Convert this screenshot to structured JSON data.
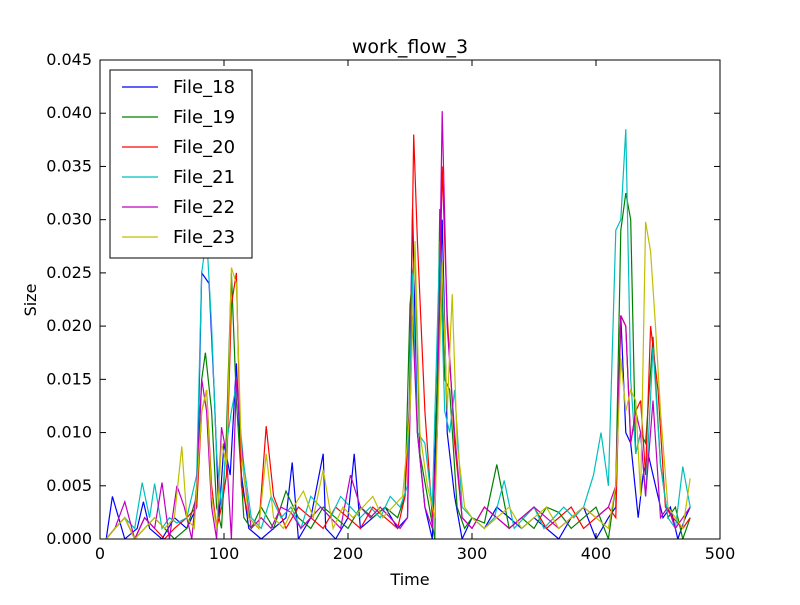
{
  "chart_data": {
    "type": "line",
    "title": "work_flow_3",
    "xlabel": "Time",
    "ylabel": "Size",
    "xlim": [
      0,
      500
    ],
    "ylim": [
      0,
      0.045
    ],
    "xticks": [
      0,
      100,
      200,
      300,
      400,
      500
    ],
    "yticks": [
      0.0,
      0.005,
      0.01,
      0.015,
      0.02,
      0.025,
      0.03,
      0.035,
      0.04,
      0.045
    ],
    "xtick_labels": [
      "0",
      "100",
      "200",
      "300",
      "400",
      "500"
    ],
    "ytick_labels": [
      "0.000",
      "0.005",
      "0.010",
      "0.015",
      "0.020",
      "0.025",
      "0.030",
      "0.035",
      "0.040",
      "0.045"
    ],
    "grid": false,
    "legend_position": "top-left",
    "series": [
      {
        "name": "File_18",
        "color": "#0000ff",
        "x": [
          5,
          10,
          15,
          20,
          30,
          35,
          40,
          50,
          60,
          70,
          78,
          82,
          88,
          92,
          96,
          100,
          105,
          110,
          114,
          120,
          130,
          140,
          150,
          155,
          160,
          170,
          180,
          182,
          190,
          200,
          205,
          210,
          220,
          230,
          240,
          248,
          252,
          256,
          262,
          268,
          272,
          276,
          280,
          286,
          292,
          300,
          310,
          320,
          330,
          340,
          350,
          360,
          370,
          380,
          390,
          400,
          410,
          416,
          420,
          424,
          428,
          434,
          438,
          442,
          448,
          454,
          460,
          466,
          472,
          476
        ],
        "values": [
          0.0,
          0.004,
          0.002,
          0.0,
          0.001,
          0.0035,
          0.001,
          0.0,
          0.002,
          0.001,
          0.003,
          0.025,
          0.024,
          0.014,
          0.002,
          0.009,
          0.006,
          0.0165,
          0.006,
          0.001,
          0.0,
          0.001,
          0.002,
          0.0072,
          0.0,
          0.002,
          0.008,
          0.001,
          0.0,
          0.002,
          0.008,
          0.001,
          0.002,
          0.003,
          0.001,
          0.002,
          0.031,
          0.01,
          0.003,
          0.0,
          0.015,
          0.03,
          0.01,
          0.004,
          0.0,
          0.002,
          0.001,
          0.003,
          0.002,
          0.001,
          0.002,
          0.001,
          0.0,
          0.002,
          0.003,
          0.0,
          0.002,
          0.003,
          0.021,
          0.01,
          0.009,
          0.002,
          0.006,
          0.008,
          0.005,
          0.002,
          0.003,
          0.0,
          0.002,
          0.003
        ]
      },
      {
        "name": "File_19",
        "color": "#008000",
        "x": [
          5,
          12,
          20,
          28,
          36,
          44,
          52,
          60,
          70,
          78,
          82,
          85,
          90,
          94,
          98,
          102,
          106,
          110,
          116,
          122,
          130,
          140,
          150,
          160,
          170,
          180,
          190,
          200,
          210,
          220,
          230,
          240,
          246,
          250,
          254,
          258,
          264,
          270,
          274,
          278,
          282,
          288,
          294,
          300,
          310,
          320,
          330,
          340,
          350,
          360,
          370,
          380,
          390,
          400,
          410,
          416,
          420,
          424,
          428,
          432,
          436,
          440,
          446,
          452,
          458,
          464,
          470,
          476
        ],
        "values": [
          0.0,
          0.001,
          0.002,
          0.0,
          0.001,
          0.002,
          0.001,
          0.0,
          0.001,
          0.004,
          0.015,
          0.0175,
          0.012,
          0.003,
          0.001,
          0.01,
          0.025,
          0.013,
          0.002,
          0.001,
          0.003,
          0.001,
          0.0045,
          0.002,
          0.001,
          0.003,
          0.002,
          0.001,
          0.003,
          0.002,
          0.003,
          0.002,
          0.004,
          0.022,
          0.027,
          0.008,
          0.004,
          0.0,
          0.031,
          0.015,
          0.014,
          0.003,
          0.001,
          0.002,
          0.0015,
          0.007,
          0.001,
          0.002,
          0.001,
          0.003,
          0.0025,
          0.001,
          0.002,
          0.003,
          0.0,
          0.005,
          0.029,
          0.0325,
          0.03,
          0.008,
          0.01,
          0.009,
          0.019,
          0.007,
          0.002,
          0.003,
          0.0,
          0.002
        ]
      },
      {
        "name": "File_20",
        "color": "#ff0000",
        "x": [
          5,
          12,
          20,
          28,
          36,
          44,
          52,
          60,
          70,
          78,
          82,
          86,
          90,
          94,
          98,
          102,
          106,
          110,
          114,
          120,
          128,
          134,
          140,
          150,
          160,
          170,
          180,
          190,
          200,
          210,
          220,
          230,
          240,
          246,
          250,
          253,
          256,
          262,
          268,
          272,
          276,
          280,
          286,
          292,
          300,
          310,
          320,
          330,
          340,
          350,
          360,
          370,
          380,
          390,
          400,
          410,
          416,
          420,
          424,
          428,
          432,
          436,
          440,
          444,
          450,
          456,
          462,
          470,
          476
        ],
        "values": [
          0.0,
          0.001,
          0.002,
          0.0,
          0.002,
          0.001,
          0.0,
          0.001,
          0.002,
          0.003,
          0.012,
          0.014,
          0.005,
          0.001,
          0.003,
          0.006,
          0.022,
          0.025,
          0.005,
          0.002,
          0.001,
          0.0106,
          0.004,
          0.001,
          0.003,
          0.002,
          0.001,
          0.003,
          0.002,
          0.001,
          0.003,
          0.002,
          0.001,
          0.004,
          0.014,
          0.038,
          0.028,
          0.012,
          0.002,
          0.01,
          0.035,
          0.021,
          0.009,
          0.002,
          0.001,
          0.003,
          0.002,
          0.001,
          0.002,
          0.003,
          0.001,
          0.002,
          0.003,
          0.001,
          0.002,
          0.003,
          0.002,
          0.021,
          0.02,
          0.009,
          0.012,
          0.013,
          0.006,
          0.02,
          0.014,
          0.003,
          0.002,
          0.001,
          0.002
        ]
      },
      {
        "name": "File_21",
        "color": "#00bfbf",
        "x": [
          5,
          12,
          20,
          28,
          34,
          40,
          44,
          50,
          56,
          62,
          70,
          78,
          82,
          86,
          90,
          94,
          98,
          102,
          106,
          110,
          116,
          122,
          130,
          138,
          146,
          154,
          162,
          170,
          178,
          186,
          194,
          202,
          210,
          218,
          226,
          234,
          242,
          248,
          252,
          256,
          262,
          268,
          274,
          278,
          282,
          286,
          292,
          300,
          310,
          318,
          326,
          334,
          342,
          350,
          358,
          366,
          374,
          382,
          390,
          398,
          404,
          410,
          416,
          420,
          424,
          428,
          432,
          436,
          440,
          446,
          452,
          458,
          464,
          470,
          476
        ],
        "values": [
          0.0,
          0.001,
          0.002,
          0.001,
          0.0053,
          0.002,
          0.0052,
          0.001,
          0.002,
          0.0015,
          0.002,
          0.006,
          0.025,
          0.0285,
          0.02,
          0.008,
          0.003,
          0.009,
          0.012,
          0.0145,
          0.007,
          0.002,
          0.001,
          0.004,
          0.002,
          0.003,
          0.001,
          0.004,
          0.003,
          0.002,
          0.004,
          0.003,
          0.002,
          0.003,
          0.002,
          0.004,
          0.003,
          0.005,
          0.025,
          0.01,
          0.009,
          0.003,
          0.028,
          0.012,
          0.01,
          0.014,
          0.003,
          0.002,
          0.001,
          0.002,
          0.0055,
          0.001,
          0.002,
          0.003,
          0.001,
          0.002,
          0.003,
          0.002,
          0.003,
          0.006,
          0.01,
          0.005,
          0.029,
          0.03,
          0.0385,
          0.015,
          0.008,
          0.01,
          0.004,
          0.018,
          0.007,
          0.002,
          0.001,
          0.0068,
          0.003
        ]
      },
      {
        "name": "File_22",
        "color": "#bf00bf",
        "x": [
          5,
          12,
          20,
          28,
          36,
          44,
          50,
          56,
          62,
          68,
          74,
          78,
          82,
          86,
          90,
          94,
          98,
          102,
          106,
          110,
          116,
          122,
          130,
          138,
          146,
          154,
          162,
          170,
          178,
          186,
          194,
          202,
          210,
          218,
          226,
          234,
          242,
          248,
          252,
          256,
          262,
          268,
          272,
          276,
          280,
          286,
          292,
          300,
          310,
          320,
          330,
          340,
          350,
          360,
          370,
          380,
          390,
          400,
          410,
          416,
          420,
          424,
          428,
          432,
          436,
          440,
          446,
          452,
          458,
          464,
          470,
          476
        ],
        "values": [
          0.0,
          0.001,
          0.0035,
          0.0,
          0.002,
          0.001,
          0.0053,
          0.0,
          0.005,
          0.003,
          0.0,
          0.005,
          0.015,
          0.012,
          0.003,
          0.0,
          0.0105,
          0.008,
          0.0,
          0.015,
          0.006,
          0.001,
          0.002,
          0.001,
          0.003,
          0.0025,
          0.001,
          0.002,
          0.003,
          0.002,
          0.001,
          0.006,
          0.003,
          0.002,
          0.003,
          0.002,
          0.001,
          0.002,
          0.021,
          0.01,
          0.003,
          0.001,
          0.01,
          0.0402,
          0.02,
          0.01,
          0.002,
          0.001,
          0.003,
          0.002,
          0.001,
          0.002,
          0.003,
          0.002,
          0.001,
          0.002,
          0.003,
          0.002,
          0.003,
          0.005,
          0.021,
          0.02,
          0.009,
          0.012,
          0.01,
          0.004,
          0.013,
          0.002,
          0.003,
          0.001,
          0.002,
          0.003
        ]
      },
      {
        "name": "File_23",
        "color": "#bfbf00",
        "x": [
          5,
          12,
          20,
          28,
          36,
          44,
          52,
          60,
          66,
          70,
          76,
          82,
          86,
          90,
          94,
          98,
          102,
          106,
          110,
          114,
          120,
          128,
          134,
          140,
          148,
          156,
          164,
          172,
          180,
          188,
          196,
          204,
          212,
          220,
          228,
          236,
          244,
          250,
          254,
          258,
          264,
          270,
          276,
          280,
          284,
          288,
          294,
          300,
          310,
          320,
          330,
          340,
          350,
          360,
          370,
          380,
          390,
          400,
          410,
          416,
          420,
          424,
          428,
          432,
          436,
          440,
          444,
          448,
          452,
          458,
          464,
          470,
          476
        ],
        "values": [
          0.0,
          0.001,
          0.002,
          0.0,
          0.001,
          0.002,
          0.001,
          0.002,
          0.0087,
          0.002,
          0.001,
          0.012,
          0.014,
          0.004,
          0.001,
          0.009,
          0.007,
          0.0255,
          0.024,
          0.008,
          0.002,
          0.001,
          0.008,
          0.002,
          0.001,
          0.003,
          0.0045,
          0.002,
          0.0065,
          0.001,
          0.003,
          0.002,
          0.003,
          0.004,
          0.002,
          0.003,
          0.004,
          0.012,
          0.028,
          0.01,
          0.005,
          0.002,
          0.026,
          0.012,
          0.023,
          0.009,
          0.003,
          0.002,
          0.001,
          0.002,
          0.003,
          0.001,
          0.002,
          0.003,
          0.001,
          0.002,
          0.003,
          0.002,
          0.001,
          0.005,
          0.017,
          0.012,
          0.014,
          0.013,
          0.004,
          0.0298,
          0.027,
          0.02,
          0.012,
          0.003,
          0.002,
          0.001,
          0.0057
        ]
      }
    ]
  }
}
